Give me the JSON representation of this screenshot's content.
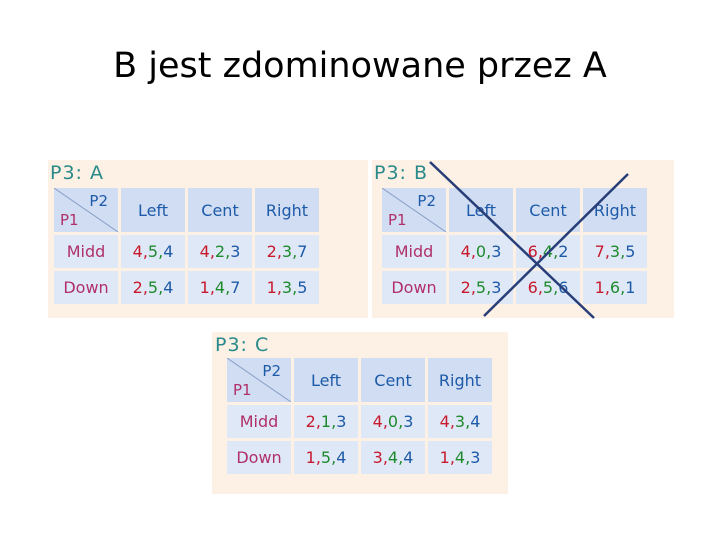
{
  "title": "B jest zdominowane przez A",
  "corner": {
    "p2": "P2",
    "p1": "P1"
  },
  "tables": {
    "A": {
      "label": "P3: A",
      "cols": [
        "Left",
        "Cent",
        "Right"
      ],
      "rows": [
        {
          "label": "Midd",
          "cells": [
            [
              "4",
              "5",
              "4"
            ],
            [
              "4",
              "2",
              "3"
            ],
            [
              "2",
              "3",
              "7"
            ]
          ]
        },
        {
          "label": "Down",
          "cells": [
            [
              "2",
              "5",
              "4"
            ],
            [
              "1",
              "4",
              "7"
            ],
            [
              "1",
              "3",
              "5"
            ]
          ]
        }
      ]
    },
    "B": {
      "label": "P3: B",
      "cols": [
        "Left",
        "Cent",
        "Right"
      ],
      "rows": [
        {
          "label": "Midd",
          "cells": [
            [
              "4",
              "0",
              "3"
            ],
            [
              "6",
              "4",
              "2"
            ],
            [
              "7",
              "3",
              "5"
            ]
          ]
        },
        {
          "label": "Down",
          "cells": [
            [
              "2",
              "5",
              "3"
            ],
            [
              "6",
              "5",
              "6"
            ],
            [
              "1",
              "6",
              "1"
            ]
          ]
        }
      ]
    },
    "C": {
      "label": "P3: C",
      "cols": [
        "Left",
        "Cent",
        "Right"
      ],
      "rows": [
        {
          "label": "Midd",
          "cells": [
            [
              "2",
              "1",
              "3"
            ],
            [
              "4",
              "0",
              "3"
            ],
            [
              "4",
              "3",
              "4"
            ]
          ]
        },
        {
          "label": "Down",
          "cells": [
            [
              "1",
              "5",
              "4"
            ],
            [
              "3",
              "4",
              "4"
            ],
            [
              "1",
              "4",
              "3"
            ]
          ]
        }
      ]
    }
  },
  "colors": {
    "p1_value": "#c8192e",
    "p2_value": "#1e8a2e",
    "p3_value": "#1d5aa8",
    "cross": "#283e78"
  }
}
